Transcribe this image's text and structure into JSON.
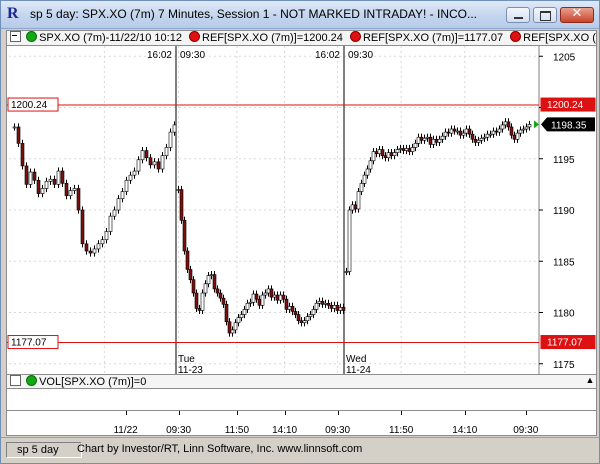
{
  "window": {
    "title": "sp 5 day: SPX.XO (7m) 7 Minutes, Session 1 - NOT MARKED INTRADAY! - INCO...",
    "app_icon": "R",
    "minimize_icon": "minimize-icon",
    "maximize_icon": "maximize-icon",
    "close_icon": "close-icon"
  },
  "legend": {
    "series_label": "SPX.XO (7m)-11/22/10 10:12",
    "ref1_label": "REF[SPX.XO (7m)]=1200.24",
    "ref2_label": "REF[SPX.XO (7m)]=1177.07",
    "ref3_label": "REF[SPX.XO (",
    "series_color": "#11a811",
    "ref_color": "#dd1111"
  },
  "chart_data": {
    "type": "candlestick",
    "price_axis": {
      "ylim": [
        1174,
        1206
      ],
      "ticks": [
        1175,
        1180,
        1185,
        1190,
        1195,
        1200,
        1205
      ]
    },
    "reference_lines": [
      {
        "value": 1200.24,
        "label": "1200.24",
        "color": "#dd1111"
      },
      {
        "value": 1177.07,
        "label": "1177.07",
        "color": "#dd1111"
      }
    ],
    "last_price": {
      "value": 1198.35,
      "label": "1198.35",
      "color": "#11a811"
    },
    "session_labels": [
      {
        "time": "16:02",
        "open_time": "09:30"
      },
      {
        "time": "16:02",
        "open_time": "09:30"
      }
    ],
    "day_labels": [
      {
        "day": "Tue",
        "date": "11-23"
      },
      {
        "day": "Wed",
        "date": "11-24"
      }
    ],
    "time_ticks": [
      "11/22",
      "09:30",
      "11:50",
      "14:10",
      "09:30",
      "11:50",
      "14:10",
      "09:30"
    ],
    "segments": [
      {
        "points": [
          [
            0,
            1198.1
          ],
          [
            4,
            1196.5
          ],
          [
            8,
            1194.3
          ],
          [
            12,
            1192.5
          ],
          [
            16,
            1193.7
          ],
          [
            20,
            1192.9
          ],
          [
            24,
            1191.6
          ],
          [
            28,
            1192.1
          ],
          [
            32,
            1192.8
          ],
          [
            36,
            1193.0
          ],
          [
            40,
            1192.5
          ],
          [
            44,
            1193.8
          ],
          [
            48,
            1192.6
          ],
          [
            52,
            1191.4
          ],
          [
            56,
            1191.9
          ],
          [
            60,
            1192.1
          ],
          [
            64,
            1190.0
          ],
          [
            68,
            1186.7
          ],
          [
            72,
            1186.0
          ],
          [
            76,
            1185.8
          ],
          [
            80,
            1186.2
          ],
          [
            84,
            1186.7
          ],
          [
            88,
            1187.1
          ],
          [
            92,
            1187.9
          ],
          [
            96,
            1189.4
          ],
          [
            100,
            1190.0
          ],
          [
            104,
            1191.1
          ],
          [
            108,
            1191.8
          ],
          [
            112,
            1192.9
          ],
          [
            116,
            1193.4
          ],
          [
            120,
            1193.8
          ],
          [
            124,
            1194.9
          ],
          [
            128,
            1195.8
          ],
          [
            132,
            1195.1
          ],
          [
            136,
            1194.4
          ],
          [
            140,
            1194.7
          ],
          [
            144,
            1194.0
          ],
          [
            148,
            1195.3
          ],
          [
            152,
            1196.1
          ],
          [
            156,
            1197.6
          ],
          [
            160,
            1198.3
          ]
        ]
      },
      {
        "points": [
          [
            164,
            1192.0
          ],
          [
            167,
            1189.0
          ],
          [
            170,
            1186.0
          ],
          [
            173,
            1184.2
          ],
          [
            176,
            1183.2
          ],
          [
            179,
            1181.9
          ],
          [
            182,
            1180.4
          ],
          [
            185,
            1180.2
          ],
          [
            188,
            1181.9
          ],
          [
            191,
            1182.8
          ],
          [
            194,
            1183.6
          ],
          [
            197,
            1183.7
          ],
          [
            200,
            1182.3
          ],
          [
            203,
            1181.9
          ],
          [
            206,
            1181.4
          ],
          [
            209,
            1180.8
          ],
          [
            212,
            1179.1
          ],
          [
            215,
            1178.0
          ],
          [
            218,
            1178.3
          ],
          [
            221,
            1179.0
          ],
          [
            224,
            1179.5
          ],
          [
            227,
            1179.8
          ],
          [
            230,
            1180.3
          ],
          [
            233,
            1180.9
          ],
          [
            236,
            1181.0
          ],
          [
            239,
            1181.8
          ],
          [
            242,
            1181.3
          ],
          [
            245,
            1180.7
          ],
          [
            248,
            1181.7
          ],
          [
            251,
            1181.9
          ],
          [
            254,
            1182.3
          ],
          [
            257,
            1181.5
          ],
          [
            260,
            1181.7
          ],
          [
            263,
            1181.2
          ],
          [
            266,
            1181.7
          ],
          [
            269,
            1181.3
          ],
          [
            272,
            1180.3
          ],
          [
            275,
            1180.6
          ],
          [
            278,
            1180.1
          ],
          [
            281,
            1179.8
          ],
          [
            284,
            1179.2
          ],
          [
            287,
            1179.0
          ],
          [
            290,
            1179.2
          ],
          [
            293,
            1179.6
          ],
          [
            296,
            1179.8
          ],
          [
            299,
            1180.3
          ],
          [
            302,
            1180.9
          ],
          [
            305,
            1181.1
          ],
          [
            308,
            1180.8
          ],
          [
            311,
            1180.9
          ],
          [
            314,
            1180.7
          ],
          [
            317,
            1180.4
          ],
          [
            320,
            1180.7
          ],
          [
            323,
            1180.2
          ],
          [
            326,
            1180.5
          ],
          [
            329,
            1180.2
          ]
        ]
      },
      {
        "points": [
          [
            332,
            1184.0
          ],
          [
            335,
            1190.0
          ],
          [
            338,
            1190.5
          ],
          [
            341,
            1190.1
          ],
          [
            344,
            1191.8
          ],
          [
            347,
            1192.6
          ],
          [
            350,
            1193.4
          ],
          [
            353,
            1194.0
          ],
          [
            356,
            1194.8
          ],
          [
            359,
            1195.7
          ],
          [
            362,
            1195.5
          ],
          [
            365,
            1195.9
          ],
          [
            368,
            1195.3
          ],
          [
            371,
            1195.1
          ],
          [
            374,
            1195.6
          ],
          [
            377,
            1195.3
          ],
          [
            380,
            1195.6
          ],
          [
            383,
            1195.9
          ],
          [
            386,
            1196.0
          ],
          [
            389,
            1195.8
          ],
          [
            392,
            1196.0
          ],
          [
            395,
            1195.7
          ],
          [
            398,
            1196.1
          ],
          [
            401,
            1196.5
          ],
          [
            404,
            1197.1
          ],
          [
            407,
            1196.8
          ],
          [
            410,
            1197.0
          ],
          [
            413,
            1197.1
          ],
          [
            416,
            1196.4
          ],
          [
            419,
            1196.9
          ],
          [
            422,
            1196.6
          ],
          [
            425,
            1196.9
          ],
          [
            428,
            1197.2
          ],
          [
            431,
            1197.6
          ],
          [
            434,
            1197.5
          ],
          [
            437,
            1197.9
          ],
          [
            440,
            1197.7
          ],
          [
            443,
            1197.7
          ],
          [
            446,
            1197.3
          ],
          [
            449,
            1197.5
          ],
          [
            452,
            1197.9
          ],
          [
            455,
            1197.4
          ],
          [
            458,
            1196.9
          ],
          [
            461,
            1196.6
          ],
          [
            464,
            1196.8
          ],
          [
            467,
            1197.0
          ],
          [
            470,
            1197.1
          ],
          [
            473,
            1197.4
          ],
          [
            476,
            1197.4
          ],
          [
            479,
            1197.7
          ],
          [
            482,
            1197.6
          ],
          [
            485,
            1197.9
          ],
          [
            488,
            1198.3
          ],
          [
            491,
            1198.6
          ],
          [
            494,
            1198.1
          ],
          [
            497,
            1197.3
          ],
          [
            500,
            1196.9
          ],
          [
            503,
            1197.5
          ],
          [
            506,
            1197.8
          ],
          [
            509,
            1197.9
          ],
          [
            512,
            1198.1
          ],
          [
            515,
            1198.35
          ]
        ]
      }
    ],
    "volume_label": "VOL[SPX.XO (7m)]=0"
  },
  "status": {
    "layout_name": "sp 5 day",
    "credit": "Chart by Investor/RT, Linn Software, Inc. www.linnsoft.com"
  }
}
